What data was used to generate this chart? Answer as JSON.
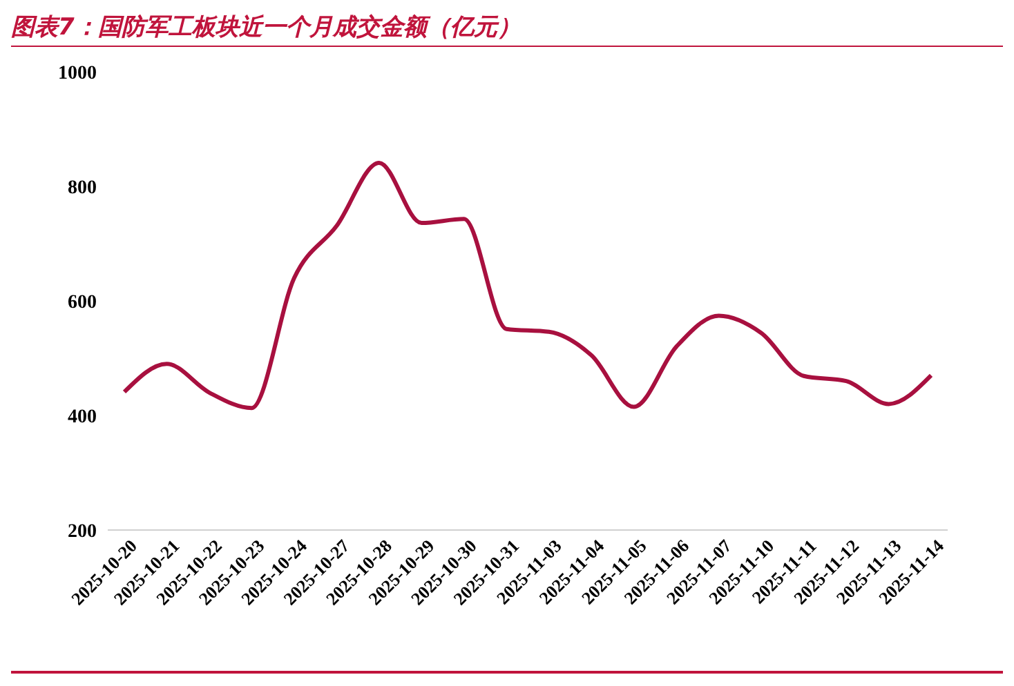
{
  "chart_data": {
    "type": "line",
    "title": "图表7：国防军工板块近一个月成交金额（亿元）",
    "categories": [
      "2025-10-20",
      "2025-10-21",
      "2025-10-22",
      "2025-10-23",
      "2025-10-24",
      "2025-10-27",
      "2025-10-28",
      "2025-10-29",
      "2025-10-30",
      "2025-10-31",
      "2025-11-03",
      "2025-11-04",
      "2025-11-05",
      "2025-11-06",
      "2025-11-07",
      "2025-11-10",
      "2025-11-11",
      "2025-11-12",
      "2025-11-13",
      "2025-11-14"
    ],
    "series": [
      {
        "color": "#a8103f",
        "values": [
          441,
          490,
          440,
          413,
          640,
          731,
          841,
          736,
          743,
          551,
          546,
          505,
          415,
          520,
          574,
          544,
          469,
          460,
          420,
          470
        ]
      }
    ],
    "ylim": [
      200,
      1000
    ],
    "yticks": [
      200,
      400,
      600,
      800,
      1000
    ],
    "grid": false,
    "legend": false,
    "marker": "none",
    "line_style": "solid"
  }
}
